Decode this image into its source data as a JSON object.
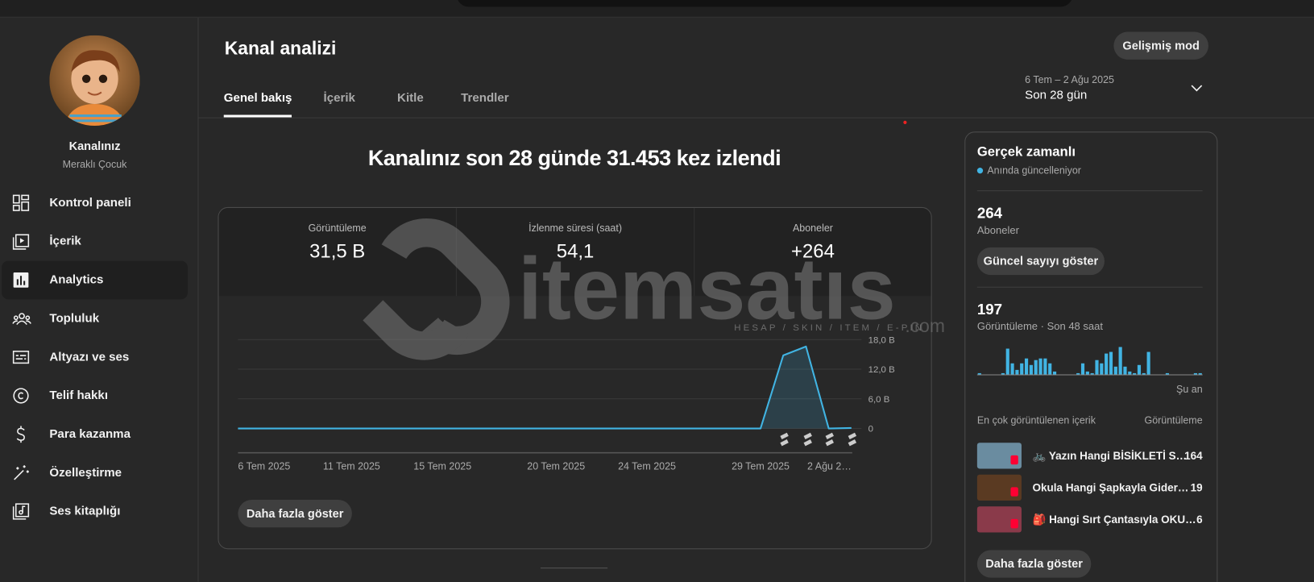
{
  "sidebar": {
    "channel_name": "Kanalınız",
    "channel_handle": "Meraklı Çocuk",
    "nav": [
      "Kontrol paneli",
      "İçerik",
      "Analytics",
      "Topluluk",
      "Altyazı ve ses",
      "Telif hakkı",
      "Para kazanma",
      "Özelleştirme",
      "Ses kitaplığı"
    ],
    "active_nav": 2
  },
  "header": {
    "title": "Kanal analizi",
    "advanced_button": "Gelişmiş mod",
    "tabs": [
      "Genel bakış",
      "İçerik",
      "Kitle",
      "Trendler"
    ],
    "active_tab": 0,
    "date_range": "6 Tem – 2 Ağu 2025",
    "period": "Son 28 gün"
  },
  "overview": {
    "headline": "Kanalınız son 28 günde 31.453 kez izlendi",
    "metrics": [
      {
        "label": "Görüntüleme",
        "value": "31,5 B"
      },
      {
        "label": "İzlenme süresi (saat)",
        "value": "54,1"
      },
      {
        "label": "Aboneler",
        "value": "+264"
      }
    ],
    "chart": {
      "type": "line",
      "categories": [
        "6 Tem 2025",
        null,
        null,
        null,
        null,
        "11 Tem 2025",
        null,
        null,
        null,
        "15 Tem 2025",
        null,
        null,
        null,
        null,
        "20 Tem 2025",
        null,
        null,
        null,
        "24 Tem 2025",
        null,
        null,
        null,
        null,
        "29 Tem 2025",
        null,
        null,
        null,
        "2 Ağu 2…"
      ],
      "values": [
        0,
        0,
        0,
        0,
        0,
        0,
        0,
        0,
        0,
        0,
        0,
        0,
        0,
        0,
        0,
        0,
        0,
        0,
        0,
        0,
        0,
        0,
        0,
        0,
        14.8,
        16.6,
        0,
        0.1
      ],
      "color": "#41b4e3",
      "ylim": [
        0,
        18
      ],
      "yticks": [
        0,
        {
          "value": 6,
          "label": "6,0 B"
        },
        {
          "value": 12,
          "label": "12,0 B"
        },
        {
          "value": 18,
          "label": "18,0 B"
        }
      ],
      "grid": true
    },
    "more_button": "Daha fazla göster"
  },
  "realtime": {
    "title": "Gerçek zamanlı",
    "status": "Anında güncelleniyor",
    "subscribers": 264,
    "subscribers_label": "Aboneler",
    "subscribers_button": "Güncel sayıyı göster",
    "views": 197,
    "views_label": "Görüntüleme · Son 48 saat",
    "chart": {
      "type": "bar",
      "values": [
        1,
        0,
        0,
        0,
        0,
        1,
        16,
        7,
        3,
        7,
        10,
        6,
        9,
        10,
        10,
        7,
        2,
        0,
        0,
        0,
        0,
        1,
        7,
        2,
        1,
        9,
        7,
        13,
        14,
        5,
        17,
        5,
        2,
        1,
        6,
        1,
        14,
        0,
        0,
        0,
        1,
        0,
        0,
        0,
        0,
        0,
        1,
        1
      ],
      "color": "#41b4e3",
      "end_label": "Şu an"
    },
    "top_content_label": "En çok görüntülenen içerik",
    "top_content_metric": "Görüntüleme",
    "top_content": [
      {
        "title": "🚲 Yazın Hangi BİSİKLETİ S…",
        "views": 164
      },
      {
        "title": "Okula Hangi Şapkayla Gider…",
        "views": 19
      },
      {
        "title": "🎒 Hangi Sırt Çantasıyla OKU…",
        "views": 6
      }
    ],
    "more_button": "Daha fazla göster"
  },
  "watermark": {
    "brand": "itemsatıs",
    "tagline": "HESAP / SKIN / ITEM / E-PIN",
    "suffix": ".com"
  }
}
